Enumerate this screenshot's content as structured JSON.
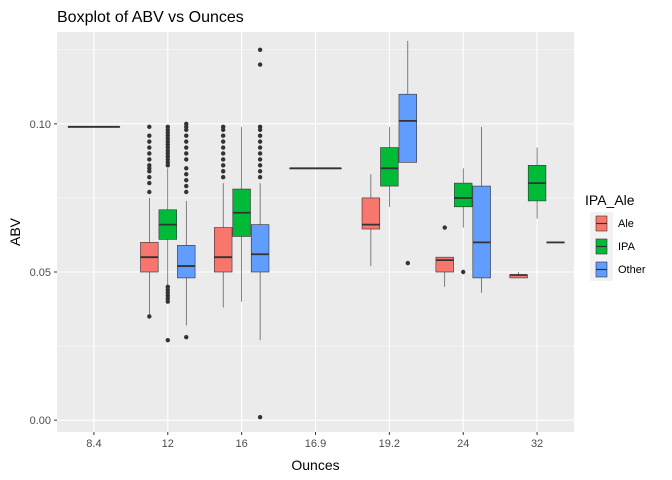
{
  "chart_data": {
    "type": "boxplot",
    "title": "Boxplot of ABV vs Ounces",
    "xlabel": "Ounces",
    "ylabel": "ABV",
    "categories": [
      "8.4",
      "12",
      "16",
      "16.9",
      "19.2",
      "24",
      "32"
    ],
    "ylim": [
      -0.004,
      0.131
    ],
    "yticks": [
      0.0,
      0.05,
      0.1
    ],
    "ytick_labels": [
      "0.00",
      "0.05",
      "0.10"
    ],
    "grid": true,
    "legend": {
      "title": "IPA_Ale",
      "position": "right",
      "entries": [
        "Ale",
        "IPA",
        "Other"
      ]
    },
    "series": [
      {
        "name": "Ale",
        "color": "#F8766D",
        "boxes": [
          {
            "category": "12",
            "min": 0.035,
            "q1": 0.05,
            "median": 0.055,
            "q3": 0.06,
            "max": 0.075,
            "outliers": [
              0.035,
              0.077,
              0.08,
              0.082,
              0.084,
              0.085,
              0.086,
              0.088,
              0.09,
              0.092,
              0.094,
              0.096,
              0.099
            ]
          },
          {
            "category": "16",
            "min": 0.038,
            "q1": 0.05,
            "median": 0.055,
            "q3": 0.065,
            "max": 0.08,
            "outliers": [
              0.082,
              0.084,
              0.086,
              0.088,
              0.09,
              0.092,
              0.094,
              0.096,
              0.098,
              0.099
            ]
          },
          {
            "category": "19.2",
            "min": 0.052,
            "q1": 0.0645,
            "median": 0.066,
            "q3": 0.075,
            "max": 0.083,
            "outliers": []
          },
          {
            "category": "24",
            "min": 0.045,
            "q1": 0.05,
            "median": 0.054,
            "q3": 0.055,
            "max": 0.055,
            "outliers": [
              0.065
            ]
          },
          {
            "category": "32",
            "min": 0.048,
            "q1": 0.048,
            "median": 0.049,
            "q3": 0.049,
            "max": 0.05,
            "outliers": []
          }
        ]
      },
      {
        "name": "IPA",
        "color": "#00BA38",
        "boxes": [
          {
            "category": "12",
            "min": 0.045,
            "q1": 0.061,
            "median": 0.066,
            "q3": 0.071,
            "max": 0.085,
            "outliers": [
              0.027,
              0.04,
              0.041,
              0.042,
              0.043,
              0.044,
              0.045,
              0.086,
              0.087,
              0.088,
              0.089,
              0.09,
              0.091,
              0.092,
              0.093,
              0.094,
              0.095,
              0.096,
              0.097,
              0.098,
              0.099
            ]
          },
          {
            "category": "16",
            "min": 0.04,
            "q1": 0.062,
            "median": 0.07,
            "q3": 0.078,
            "max": 0.099,
            "outliers": []
          },
          {
            "category": "19.2",
            "min": 0.072,
            "q1": 0.079,
            "median": 0.085,
            "q3": 0.092,
            "max": 0.099,
            "outliers": []
          },
          {
            "category": "24",
            "min": 0.065,
            "q1": 0.072,
            "median": 0.075,
            "q3": 0.08,
            "max": 0.085,
            "outliers": [
              0.05
            ]
          },
          {
            "category": "32",
            "min": 0.068,
            "q1": 0.074,
            "median": 0.08,
            "q3": 0.086,
            "max": 0.092,
            "outliers": []
          }
        ]
      },
      {
        "name": "Other",
        "color": "#619CFF",
        "boxes": [
          {
            "category": "12",
            "min": 0.032,
            "q1": 0.048,
            "median": 0.052,
            "q3": 0.059,
            "max": 0.074,
            "outliers": [
              0.028,
              0.077,
              0.079,
              0.081,
              0.083,
              0.085,
              0.088,
              0.09,
              0.092,
              0.094,
              0.096,
              0.098,
              0.099,
              0.1
            ]
          },
          {
            "category": "16",
            "min": 0.027,
            "q1": 0.05,
            "median": 0.056,
            "q3": 0.066,
            "max": 0.08,
            "outliers": [
              0.001,
              0.082,
              0.084,
              0.086,
              0.088,
              0.09,
              0.092,
              0.094,
              0.096,
              0.098,
              0.099,
              0.12,
              0.125
            ]
          },
          {
            "category": "19.2",
            "min": 0.087,
            "q1": 0.087,
            "median": 0.101,
            "q3": 0.11,
            "max": 0.128,
            "outliers": [
              0.053
            ]
          },
          {
            "category": "24",
            "min": 0.043,
            "q1": 0.048,
            "median": 0.06,
            "q3": 0.079,
            "max": 0.099,
            "outliers": []
          },
          {
            "category": "32",
            "min": 0.06,
            "q1": 0.06,
            "median": 0.06,
            "q3": 0.06,
            "max": 0.06,
            "outliers": []
          }
        ]
      },
      {
        "name": "",
        "color": "#FFFFFF",
        "boxes": [
          {
            "category": "8.4",
            "min": 0.099,
            "q1": 0.099,
            "median": 0.099,
            "q3": 0.099,
            "max": 0.099,
            "outliers": []
          },
          {
            "category": "16.9",
            "min": 0.085,
            "q1": 0.085,
            "median": 0.085,
            "q3": 0.085,
            "max": 0.085,
            "outliers": []
          }
        ]
      }
    ]
  }
}
